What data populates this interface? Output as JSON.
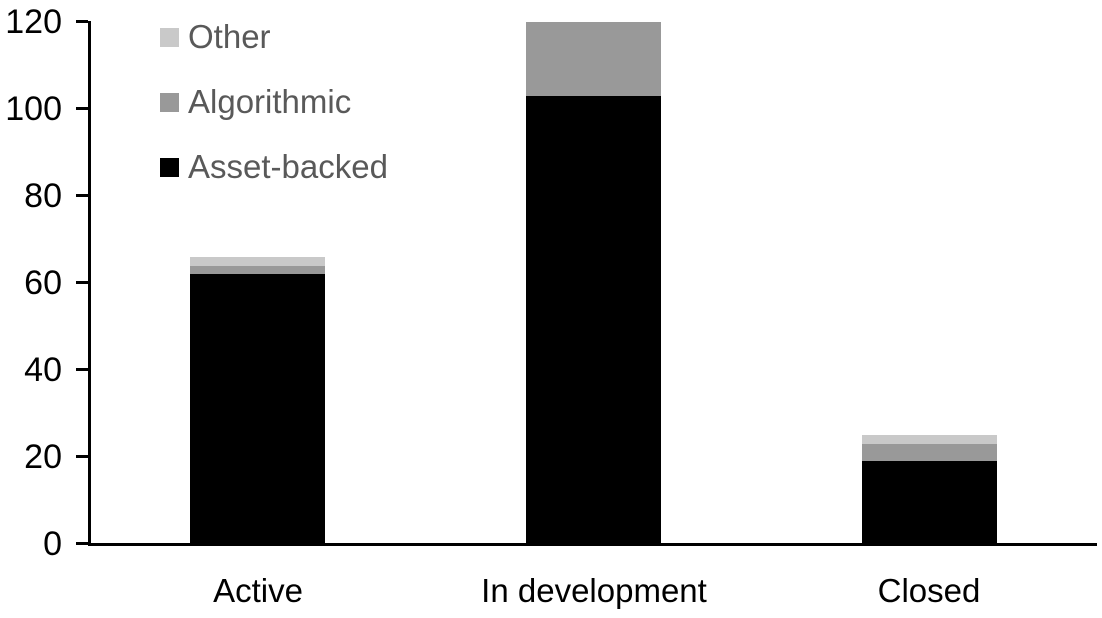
{
  "chart_data": {
    "type": "bar",
    "stacked": true,
    "title": "",
    "xlabel": "",
    "ylabel": "",
    "categories": [
      "Active",
      "In development",
      "Closed"
    ],
    "series": [
      {
        "name": "Asset-backed",
        "color": "#000000",
        "values": [
          62,
          103,
          19
        ]
      },
      {
        "name": "Algorithmic",
        "color": "#999999",
        "values": [
          2,
          17,
          4
        ]
      },
      {
        "name": "Other",
        "color": "#c9c9c9",
        "values": [
          2,
          0,
          2
        ]
      }
    ],
    "totals": [
      66,
      120,
      25
    ],
    "ylim": [
      0,
      120
    ],
    "yticks": [
      0,
      20,
      40,
      60,
      80,
      100,
      120
    ],
    "grid": false,
    "legend_position": "upper-left",
    "legend_order_top_to_bottom": [
      "Other",
      "Algorithmic",
      "Asset-backed"
    ],
    "colors": {
      "axis": "#000000",
      "tick_labels": "#000000",
      "category_labels": "#000000",
      "legend_text": "#595959",
      "background": "#ffffff"
    }
  }
}
